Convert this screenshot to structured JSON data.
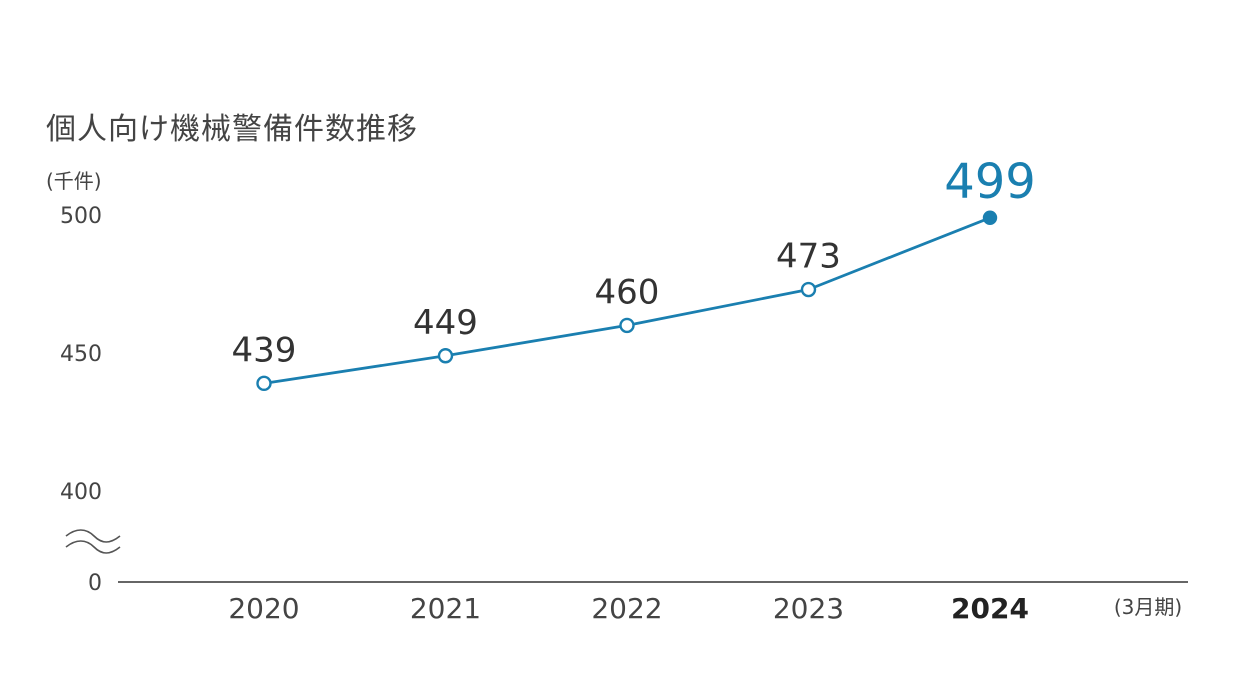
{
  "title": "個人向け機械警備件数推移",
  "chart_data": {
    "type": "line",
    "title": "個人向け機械警備件数推移",
    "ylabel": "(千件)",
    "xlabel": "(3月期)",
    "categories": [
      "2020",
      "2021",
      "2022",
      "2023",
      "2024"
    ],
    "values": [
      439,
      449,
      460,
      473,
      499
    ],
    "value_labels": [
      "439",
      "449",
      "460",
      "473",
      "499"
    ],
    "highlight_index": 4,
    "y_ticks": [
      {
        "value": 500,
        "label": "500"
      },
      {
        "value": 450,
        "label": "450"
      },
      {
        "value": 400,
        "label": "400"
      },
      {
        "value": 0,
        "label": "0"
      }
    ],
    "ylim": [
      400,
      500
    ],
    "axis_break": true,
    "grid": false,
    "colors": {
      "line": "#1a7fb0",
      "highlight_label": "#1a7fb0",
      "text": "#444444",
      "axis": "#333333"
    }
  }
}
